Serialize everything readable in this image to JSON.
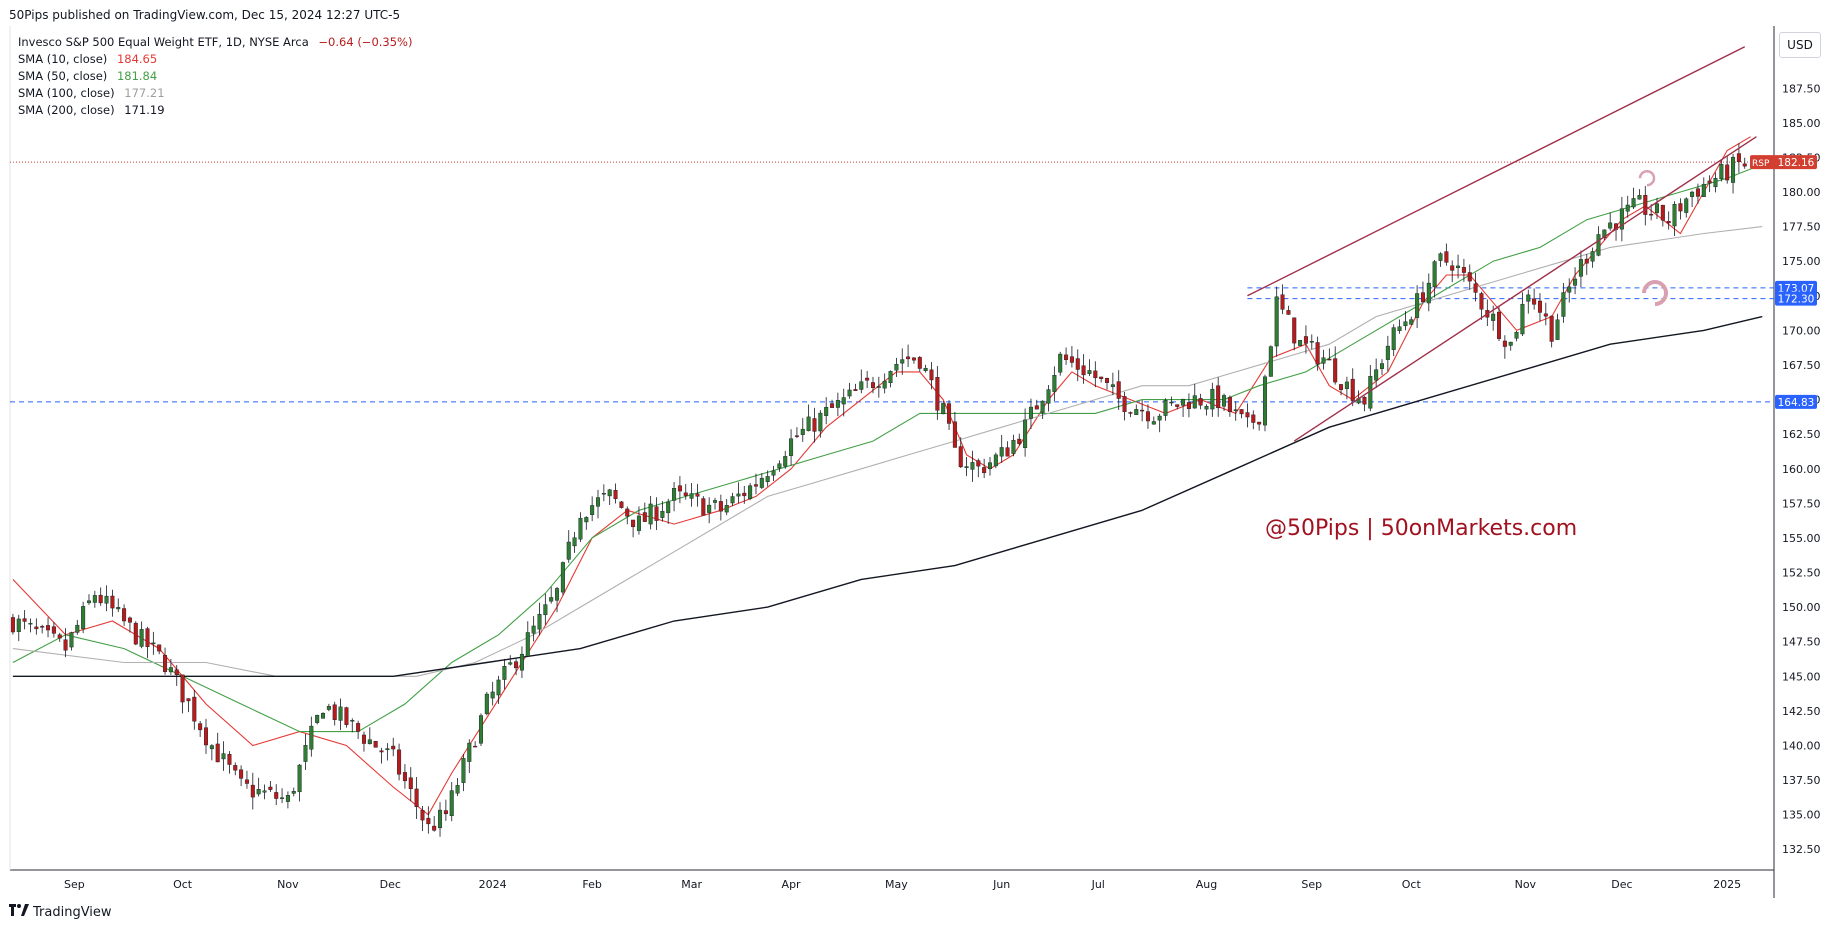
{
  "header": {
    "publisher": "50Pips published on TradingView.com, Dec 15, 2024 12:27 UTC-5"
  },
  "legend": {
    "symbol": "Invesco S&P 500 Equal Weight ETF, 1D, NYSE Arca",
    "change": "−0.64 (−0.35%)",
    "sma10": {
      "label": "SMA (10, close)",
      "value": "184.65"
    },
    "sma50": {
      "label": "SMA (50, close)",
      "value": "181.84"
    },
    "sma100": {
      "label": "SMA (100, close)",
      "value": "177.21"
    },
    "sma200": {
      "label": "SMA (200, close)",
      "value": "171.19"
    }
  },
  "currency_button": "USD",
  "watermark": "@50Pips  |  50onMarkets.com",
  "footer": {
    "brand": "TradingView",
    "logo_icon": "tradingview-logo-icon"
  },
  "colors": {
    "up": "#26a69a",
    "candle_up": "#2e7d32",
    "candle_down": "#b71c1c",
    "sma10": "#e53935",
    "sma50": "#43a047",
    "sma100": "#b0b0b0",
    "sma200": "#131722",
    "channel": "#a0304a",
    "level_line": "#2962ff",
    "watermark": "#a1111f",
    "price_tag": "#d23f31"
  },
  "chart_data": {
    "type": "candlestick",
    "symbol": "RSP",
    "last_price": "182.16",
    "ylim": [
      131,
      192
    ],
    "y_ticks": [
      "132.50",
      "135.00",
      "137.50",
      "140.00",
      "142.50",
      "145.00",
      "147.50",
      "150.00",
      "152.50",
      "155.00",
      "157.50",
      "160.00",
      "162.50",
      "165.00",
      "167.50",
      "170.00",
      "172.50",
      "175.00",
      "177.50",
      "180.00",
      "182.50",
      "185.00",
      "187.50"
    ],
    "x_ticks": [
      "Sep",
      "Oct",
      "Nov",
      "Dec",
      "2024",
      "Feb",
      "Mar",
      "Apr",
      "May",
      "Jun",
      "Jul",
      "Aug",
      "Sep",
      "Oct",
      "Nov",
      "Dec",
      "2025"
    ],
    "x_tick_positions": [
      1.5,
      20,
      38,
      55.5,
      73,
      90,
      107,
      124,
      142,
      160,
      176.5,
      195,
      213,
      230,
      249.5,
      266,
      284
    ],
    "x_range": [
      -9.5,
      292
    ],
    "horizontal_levels": [
      "173.07",
      "172.30",
      "164.83"
    ],
    "closes_keypoints": [
      [
        -9,
        149
      ],
      [
        0,
        147
      ],
      [
        5,
        151
      ],
      [
        12,
        148
      ],
      [
        17,
        146
      ],
      [
        25,
        140
      ],
      [
        30,
        137
      ],
      [
        38,
        136
      ],
      [
        44,
        143
      ],
      [
        50,
        141
      ],
      [
        56,
        139
      ],
      [
        62,
        134
      ],
      [
        65,
        135
      ],
      [
        72,
        143
      ],
      [
        78,
        147
      ],
      [
        84,
        151
      ],
      [
        88,
        157
      ],
      [
        93,
        158
      ],
      [
        98,
        156
      ],
      [
        104,
        158
      ],
      [
        112,
        157
      ],
      [
        118,
        159
      ],
      [
        124,
        162
      ],
      [
        130,
        164
      ],
      [
        137,
        166
      ],
      [
        143,
        168
      ],
      [
        146,
        168
      ],
      [
        150,
        164
      ],
      [
        152,
        161
      ],
      [
        156,
        160
      ],
      [
        160,
        161
      ],
      [
        164,
        163
      ],
      [
        170,
        168
      ],
      [
        175,
        167
      ],
      [
        180,
        165
      ],
      [
        186,
        164
      ],
      [
        192,
        165
      ],
      [
        197,
        165
      ],
      [
        202,
        163
      ],
      [
        204,
        164
      ],
      [
        207,
        172
      ],
      [
        211,
        169
      ],
      [
        215,
        168
      ],
      [
        219,
        166
      ],
      [
        222,
        165
      ],
      [
        226,
        169
      ],
      [
        231,
        172
      ],
      [
        235,
        175
      ],
      [
        237,
        175
      ],
      [
        242,
        172
      ],
      [
        247,
        169
      ],
      [
        250,
        173
      ],
      [
        254,
        170
      ],
      [
        258,
        174
      ],
      [
        262,
        177
      ],
      [
        265,
        178
      ],
      [
        269,
        179
      ],
      [
        274,
        178
      ],
      [
        278,
        180
      ],
      [
        282,
        181
      ],
      [
        286,
        182
      ]
    ],
    "sma_keypoints": {
      "sma10": [
        [
          -9,
          152
        ],
        [
          0,
          148
        ],
        [
          8,
          149
        ],
        [
          16,
          147
        ],
        [
          24,
          143
        ],
        [
          32,
          140
        ],
        [
          40,
          141
        ],
        [
          48,
          140
        ],
        [
          56,
          137
        ],
        [
          62,
          135
        ],
        [
          66,
          138
        ],
        [
          72,
          142
        ],
        [
          78,
          146
        ],
        [
          84,
          150
        ],
        [
          90,
          155
        ],
        [
          96,
          157
        ],
        [
          104,
          156
        ],
        [
          112,
          157
        ],
        [
          118,
          158
        ],
        [
          124,
          160
        ],
        [
          130,
          163
        ],
        [
          136,
          165
        ],
        [
          142,
          167
        ],
        [
          146,
          167
        ],
        [
          150,
          165
        ],
        [
          154,
          161
        ],
        [
          158,
          160
        ],
        [
          162,
          161
        ],
        [
          168,
          165
        ],
        [
          172,
          167
        ],
        [
          176,
          166
        ],
        [
          182,
          165
        ],
        [
          188,
          164
        ],
        [
          194,
          165
        ],
        [
          200,
          164
        ],
        [
          206,
          168
        ],
        [
          212,
          169
        ],
        [
          216,
          166
        ],
        [
          220,
          165
        ],
        [
          226,
          167
        ],
        [
          232,
          172
        ],
        [
          236,
          174
        ],
        [
          240,
          174
        ],
        [
          244,
          172
        ],
        [
          248,
          170
        ],
        [
          254,
          171
        ],
        [
          258,
          174
        ],
        [
          262,
          176
        ],
        [
          266,
          178
        ],
        [
          270,
          179
        ],
        [
          276,
          177
        ],
        [
          280,
          180
        ],
        [
          284,
          183
        ],
        [
          288,
          184
        ]
      ],
      "sma50": [
        [
          -9,
          146
        ],
        [
          0,
          148
        ],
        [
          10,
          147
        ],
        [
          20,
          145
        ],
        [
          30,
          143
        ],
        [
          40,
          141
        ],
        [
          50,
          141
        ],
        [
          58,
          143
        ],
        [
          66,
          146
        ],
        [
          74,
          148
        ],
        [
          82,
          151
        ],
        [
          90,
          155
        ],
        [
          98,
          157
        ],
        [
          106,
          158
        ],
        [
          114,
          159
        ],
        [
          122,
          160
        ],
        [
          130,
          161
        ],
        [
          138,
          162
        ],
        [
          146,
          164
        ],
        [
          152,
          164
        ],
        [
          160,
          164
        ],
        [
          168,
          164
        ],
        [
          176,
          164
        ],
        [
          184,
          165
        ],
        [
          192,
          165
        ],
        [
          198,
          165
        ],
        [
          204,
          166
        ],
        [
          212,
          167
        ],
        [
          220,
          169
        ],
        [
          228,
          171
        ],
        [
          236,
          173
        ],
        [
          244,
          175
        ],
        [
          252,
          176
        ],
        [
          260,
          178
        ],
        [
          268,
          179
        ],
        [
          276,
          180
        ],
        [
          284,
          181
        ],
        [
          290,
          182
        ]
      ],
      "sma100": [
        [
          -9,
          147
        ],
        [
          10,
          146
        ],
        [
          24,
          146
        ],
        [
          36,
          145
        ],
        [
          48,
          145
        ],
        [
          60,
          145
        ],
        [
          70,
          146
        ],
        [
          80,
          148
        ],
        [
          88,
          150
        ],
        [
          96,
          152
        ],
        [
          104,
          154
        ],
        [
          112,
          156
        ],
        [
          120,
          158
        ],
        [
          128,
          159
        ],
        [
          136,
          160
        ],
        [
          144,
          161
        ],
        [
          152,
          162
        ],
        [
          160,
          163
        ],
        [
          168,
          164
        ],
        [
          176,
          165
        ],
        [
          184,
          166
        ],
        [
          192,
          166
        ],
        [
          200,
          167
        ],
        [
          208,
          168
        ],
        [
          216,
          169
        ],
        [
          224,
          171
        ],
        [
          232,
          172
        ],
        [
          240,
          173
        ],
        [
          248,
          174
        ],
        [
          256,
          175
        ],
        [
          264,
          176
        ],
        [
          272,
          176.5
        ],
        [
          280,
          177
        ],
        [
          290,
          177.5
        ]
      ],
      "sma200": [
        [
          -9,
          145
        ],
        [
          10,
          145
        ],
        [
          24,
          145
        ],
        [
          40,
          145
        ],
        [
          56,
          145
        ],
        [
          72,
          146
        ],
        [
          88,
          147
        ],
        [
          104,
          149
        ],
        [
          120,
          150
        ],
        [
          136,
          152
        ],
        [
          152,
          153
        ],
        [
          168,
          155
        ],
        [
          184,
          157
        ],
        [
          200,
          160
        ],
        [
          216,
          163
        ],
        [
          232,
          165
        ],
        [
          248,
          167
        ],
        [
          264,
          169
        ],
        [
          280,
          170
        ],
        [
          290,
          171
        ]
      ]
    },
    "channel_lines": [
      {
        "from": [
          202,
          172.5
        ],
        "to": [
          287,
          190.5
        ]
      },
      {
        "from": [
          210,
          162
        ],
        "to": [
          289,
          184
        ]
      }
    ]
  }
}
